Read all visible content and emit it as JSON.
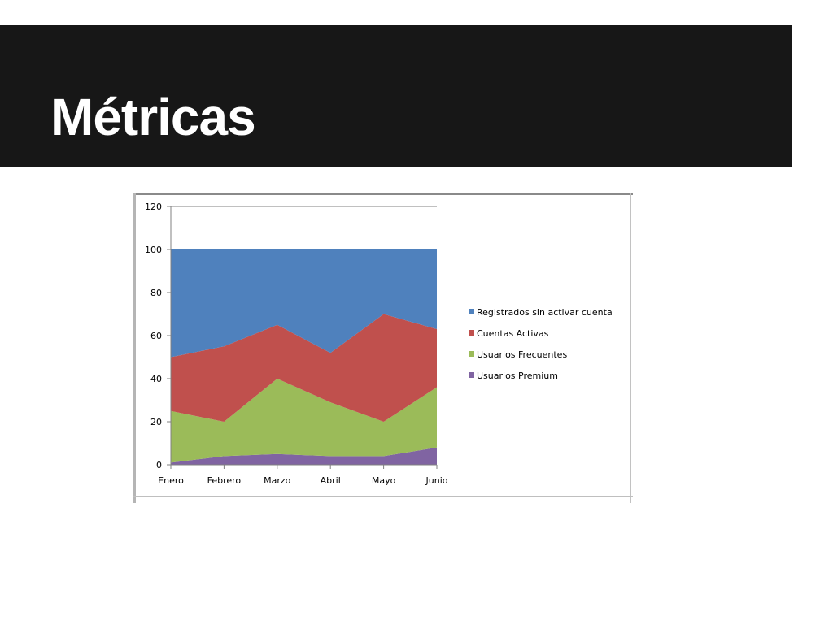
{
  "slide": {
    "title": "Métricas"
  },
  "chart_data": {
    "type": "area",
    "stacked": true,
    "categories": [
      "Enero",
      "Febrero",
      "Marzo",
      "Abril",
      "Mayo",
      "Junio"
    ],
    "ylim": [
      0,
      120
    ],
    "yticks": [
      0,
      20,
      40,
      60,
      80,
      100,
      120
    ],
    "grid": false,
    "legend_position": "right",
    "series": [
      {
        "name": "Usuarios Premium",
        "color": "#8064a2",
        "values": [
          1,
          4,
          5,
          4,
          4,
          8
        ]
      },
      {
        "name": "Usuarios Frecuentes",
        "color": "#9bbb59",
        "values": [
          24,
          16,
          35,
          25,
          16,
          28
        ]
      },
      {
        "name": "Cuentas Activas",
        "color": "#c0504d",
        "values": [
          25,
          35,
          25,
          23,
          50,
          27
        ]
      },
      {
        "name": "Registrados sin activar cuenta",
        "color": "#4f81bd",
        "values": [
          50,
          45,
          35,
          48,
          30,
          37
        ]
      }
    ],
    "legend_order": [
      "Registrados sin activar cuenta",
      "Cuentas Activas",
      "Usuarios Frecuentes",
      "Usuarios Premium"
    ]
  }
}
